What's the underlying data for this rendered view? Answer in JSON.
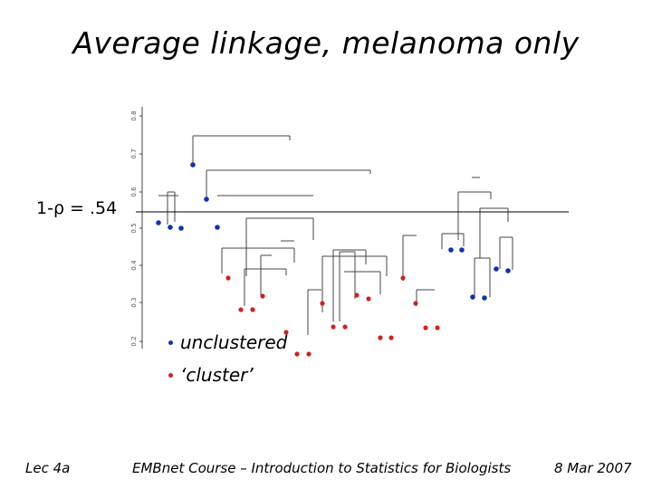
{
  "slide": {
    "title": "Average linkage, melanoma only",
    "threshold_label": "1-ρ = .54",
    "footer_left": "Lec 4a",
    "footer_center": "EMBnet Course – Introduction to Statistics for Biologists",
    "footer_right": "8 Mar 2007"
  },
  "legend": {
    "items": [
      {
        "label": "unclustered",
        "color": "#1133aa"
      },
      {
        "label": "‘cluster’",
        "color": "#cc2222"
      }
    ]
  },
  "colors": {
    "unclustered": "#1133aa",
    "cluster": "#cc2222",
    "tree": "#444444"
  },
  "chart_data": {
    "type": "dendrogram",
    "y_axis_ticks": [
      "0.8",
      "0.7",
      "0.6",
      "0.5",
      "0.4",
      "0.3",
      "0.2"
    ],
    "threshold": 0.54
  }
}
